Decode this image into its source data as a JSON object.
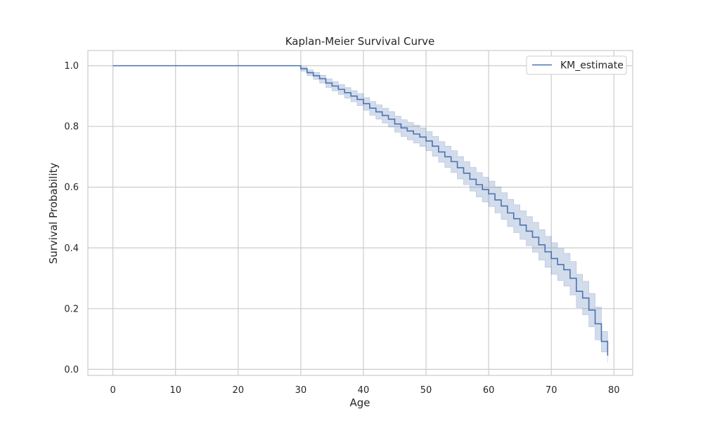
{
  "chart_data": {
    "type": "line",
    "title": "Kaplan-Meier Survival Curve",
    "xlabel": "Age",
    "ylabel": "Survival Probability",
    "xlim": [
      -4,
      83
    ],
    "ylim": [
      -0.02,
      1.05
    ],
    "xticks": [
      0,
      10,
      20,
      30,
      40,
      50,
      60,
      70,
      80
    ],
    "yticks": [
      0.0,
      0.2,
      0.4,
      0.6,
      0.8,
      1.0
    ],
    "grid": true,
    "legend_position": "top-right",
    "colors": {
      "line": "#4c72b0",
      "band": "#4c72b0",
      "grid": "#cccccc",
      "spine": "#cccccc"
    },
    "series": [
      {
        "name": "KM_estimate",
        "step": "post",
        "x": [
          0,
          30,
          31,
          32,
          33,
          34,
          35,
          36,
          37,
          38,
          39,
          40,
          41,
          42,
          43,
          44,
          45,
          46,
          47,
          48,
          49,
          50,
          51,
          52,
          53,
          54,
          55,
          56,
          57,
          58,
          59,
          60,
          61,
          62,
          63,
          64,
          65,
          66,
          67,
          68,
          69,
          70,
          71,
          72,
          73,
          74,
          75,
          76,
          77,
          78,
          79
        ],
        "values": [
          1.0,
          0.99,
          0.977,
          0.967,
          0.957,
          0.943,
          0.933,
          0.922,
          0.911,
          0.9,
          0.889,
          0.875,
          0.86,
          0.848,
          0.836,
          0.824,
          0.808,
          0.795,
          0.785,
          0.775,
          0.765,
          0.752,
          0.735,
          0.716,
          0.7,
          0.684,
          0.664,
          0.646,
          0.626,
          0.608,
          0.592,
          0.578,
          0.558,
          0.538,
          0.515,
          0.496,
          0.475,
          0.455,
          0.435,
          0.41,
          0.387,
          0.365,
          0.345,
          0.328,
          0.3,
          0.257,
          0.235,
          0.195,
          0.15,
          0.092,
          0.045
        ],
        "ci_lower": [
          1.0,
          0.982,
          0.967,
          0.955,
          0.943,
          0.928,
          0.917,
          0.905,
          0.893,
          0.881,
          0.868,
          0.853,
          0.837,
          0.824,
          0.811,
          0.798,
          0.781,
          0.767,
          0.756,
          0.745,
          0.734,
          0.72,
          0.702,
          0.682,
          0.665,
          0.648,
          0.627,
          0.608,
          0.587,
          0.568,
          0.551,
          0.536,
          0.515,
          0.494,
          0.47,
          0.45,
          0.428,
          0.407,
          0.386,
          0.36,
          0.336,
          0.313,
          0.292,
          0.274,
          0.245,
          0.203,
          0.18,
          0.14,
          0.097,
          0.057,
          0.022
        ],
        "ci_upper": [
          1.0,
          0.996,
          0.986,
          0.978,
          0.969,
          0.957,
          0.948,
          0.938,
          0.928,
          0.918,
          0.908,
          0.895,
          0.882,
          0.871,
          0.86,
          0.849,
          0.834,
          0.822,
          0.813,
          0.804,
          0.795,
          0.783,
          0.767,
          0.75,
          0.735,
          0.72,
          0.701,
          0.684,
          0.665,
          0.648,
          0.633,
          0.62,
          0.601,
          0.582,
          0.56,
          0.542,
          0.522,
          0.503,
          0.484,
          0.46,
          0.438,
          0.417,
          0.398,
          0.382,
          0.355,
          0.313,
          0.29,
          0.25,
          0.205,
          0.125,
          0.075
        ]
      }
    ]
  }
}
